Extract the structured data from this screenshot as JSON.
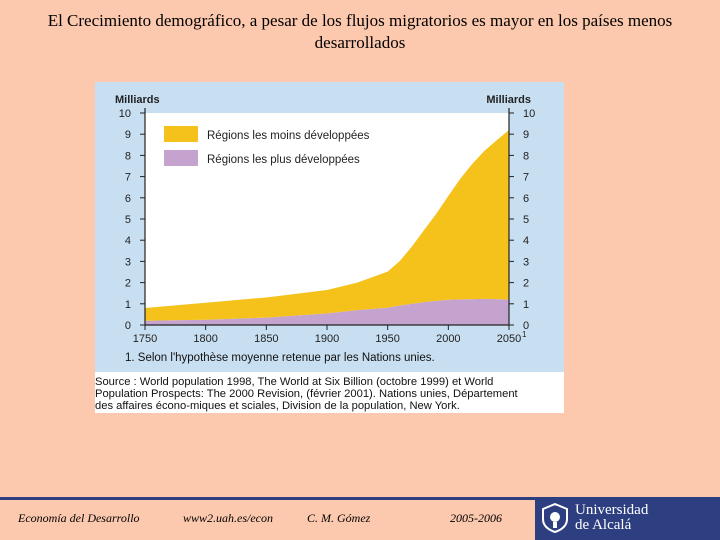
{
  "slide": {
    "title": "El Crecimiento demográfico, a pesar de los flujos migratorios es mayor en los países menos desarrollados"
  },
  "chart_data": {
    "type": "area",
    "stacked": true,
    "y_unit_left": "Milliards",
    "y_unit_right": "Milliards",
    "xlim": [
      1750,
      2050
    ],
    "ylim": [
      0,
      10
    ],
    "x_ticks": [
      "1750",
      "1800",
      "1850",
      "1900",
      "1950",
      "2000",
      "2050"
    ],
    "x_tick_last_note": "1",
    "y_ticks": [
      "0",
      "1",
      "2",
      "3",
      "4",
      "5",
      "6",
      "7",
      "8",
      "9",
      "10"
    ],
    "x": [
      1750,
      1800,
      1850,
      1900,
      1925,
      1950,
      1960,
      1970,
      1980,
      1990,
      2000,
      2010,
      2020,
      2030,
      2040,
      2050
    ],
    "series": [
      {
        "name": "Régions les plus développées",
        "color": "#c5a3cf",
        "values": [
          0.2,
          0.25,
          0.35,
          0.55,
          0.7,
          0.82,
          0.92,
          1.0,
          1.08,
          1.14,
          1.19,
          1.21,
          1.22,
          1.23,
          1.22,
          1.2
        ]
      },
      {
        "name": "Régions les moins développées",
        "color": "#f4c21b",
        "values": [
          0.6,
          0.8,
          0.95,
          1.1,
          1.3,
          1.7,
          2.1,
          2.7,
          3.4,
          4.1,
          4.9,
          5.7,
          6.4,
          7.0,
          7.5,
          8.0
        ]
      }
    ],
    "grid": false,
    "legend_position": "top-left",
    "footnote": "1. Selon l'hypothèse moyenne retenue par les Nations unies.",
    "source": "Source : World population 1998, The World at Six Billion (octobre 1999) et World\nPopulation Prospects: The 2000 Revision, (février 2001). Nations unies, Département\ndes affaires écono-miques et sciales, Division de la population, New York."
  },
  "footer": {
    "course": "Economía del Desarrollo",
    "website": "www2.uah.es/econ",
    "author": "C. M. Gómez",
    "year": "2005-2006",
    "university_line1": "Universidad",
    "university_line2": "de Alcalá"
  }
}
